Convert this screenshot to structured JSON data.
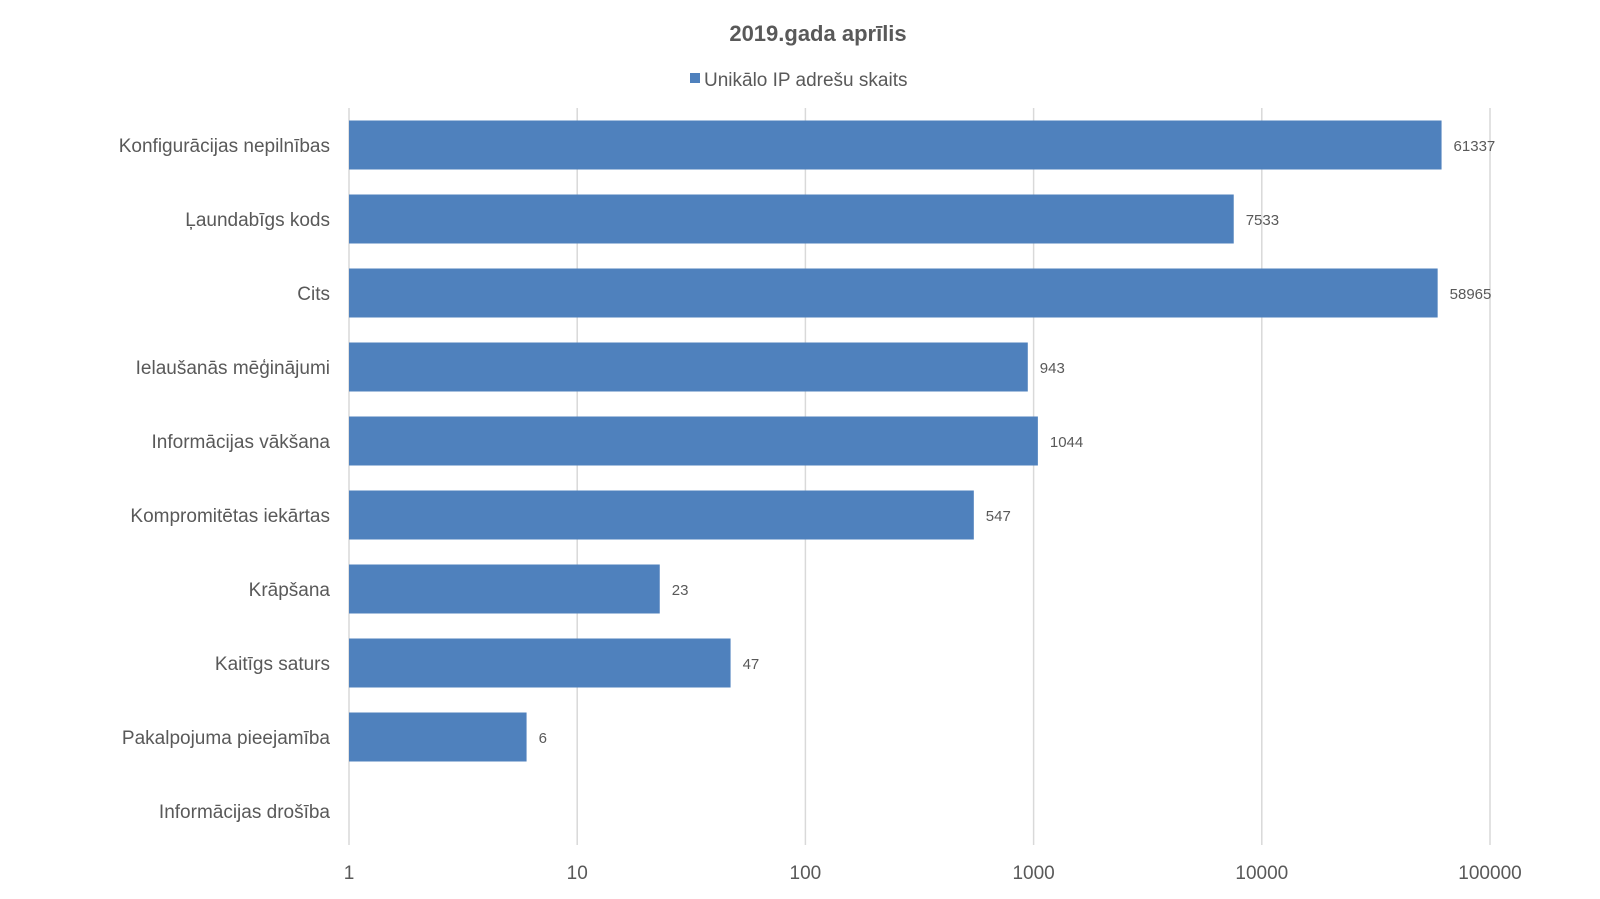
{
  "chart_data": {
    "type": "bar",
    "orientation": "horizontal",
    "title": "2019.gada aprīlis",
    "xlabel": "",
    "ylabel": "",
    "x_scale": "log",
    "xlim": [
      1,
      100000
    ],
    "x_ticks": [
      "1",
      "10",
      "100",
      "1000",
      "10000",
      "100000"
    ],
    "grid": true,
    "legend_position": "top",
    "categories": [
      "Konfigurācijas nepilnības",
      "Ļaundabīgs kods",
      "Cits",
      "Ielaušanās mēģinājumi",
      "Informācijas vākšana",
      "Kompromitētas iekārtas",
      "Krāpšana",
      "Kaitīgs saturs",
      "Pakalpojuma pieejamība",
      "Informācijas drošība"
    ],
    "series": [
      {
        "name": "Unikālo IP adrešu skaits",
        "color": "#4f81bd",
        "values": [
          61337,
          7533,
          58965,
          943,
          1044,
          547,
          23,
          47,
          6,
          null
        ],
        "data_labels": [
          "61337",
          "7533",
          "58965",
          "943",
          "1044",
          "547",
          "23",
          "47",
          "6",
          ""
        ]
      }
    ]
  }
}
